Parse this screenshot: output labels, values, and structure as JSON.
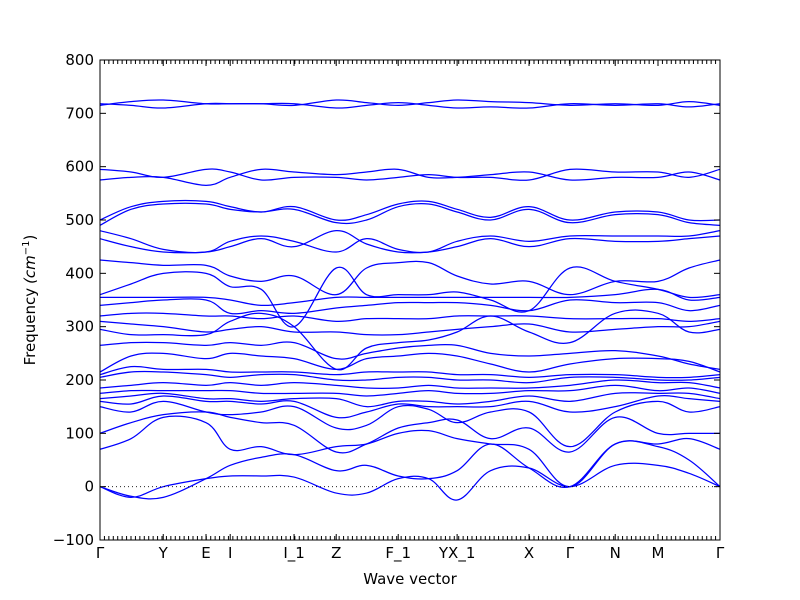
{
  "chart_data": {
    "type": "line",
    "xlabel": "Wave vector",
    "ylabel": "Frequency",
    "ylabel_unit": "(cm",
    "ylabel_exp": "−1",
    "ylabel_close": ")",
    "ylim": [
      -100,
      800
    ],
    "yticks": [
      -100,
      0,
      100,
      200,
      300,
      400,
      500,
      600,
      700,
      800
    ],
    "xlim": [
      0,
      1
    ],
    "grid": false,
    "legend": "none",
    "color": "#0000ff",
    "zero_line": 0,
    "k_labels": [
      {
        "label": "Γ",
        "x": 0.0
      },
      {
        "label": "Y",
        "x": 0.102
      },
      {
        "label": "E",
        "x": 0.171
      },
      {
        "label": "I",
        "x": 0.21
      },
      {
        "label": "I_1",
        "x": 0.313
      },
      {
        "label": "Z",
        "x": 0.381
      },
      {
        "label": "F_1",
        "x": 0.481
      },
      {
        "label": "YX_1",
        "x": 0.576
      },
      {
        "label": "X",
        "x": 0.692
      },
      {
        "label": "Γ",
        "x": 0.758
      },
      {
        "label": "N",
        "x": 0.831
      },
      {
        "label": "M",
        "x": 0.9
      },
      {
        "label": "Γ",
        "x": 1.0
      }
    ],
    "x": [
      0.0,
      0.05,
      0.102,
      0.171,
      0.21,
      0.26,
      0.313,
      0.381,
      0.43,
      0.481,
      0.53,
      0.576,
      0.63,
      0.692,
      0.758,
      0.831,
      0.9,
      0.95,
      1.0
    ],
    "series": [
      {
        "values": [
          0,
          -20,
          0,
          15,
          20,
          20,
          18,
          -12,
          -12,
          15,
          15,
          -25,
          30,
          35,
          0,
          40,
          40,
          25,
          0
        ]
      },
      {
        "values": [
          0,
          -18,
          -20,
          15,
          40,
          55,
          60,
          30,
          40,
          20,
          15,
          30,
          80,
          35,
          0,
          80,
          75,
          50,
          0
        ]
      },
      {
        "values": [
          70,
          90,
          130,
          120,
          70,
          75,
          60,
          75,
          80,
          100,
          105,
          90,
          80,
          70,
          0,
          80,
          80,
          90,
          70
        ]
      },
      {
        "values": [
          100,
          120,
          135,
          140,
          130,
          120,
          115,
          65,
          80,
          110,
          120,
          125,
          90,
          110,
          65,
          130,
          100,
          100,
          100
        ]
      },
      {
        "values": [
          150,
          140,
          160,
          140,
          135,
          140,
          150,
          110,
          115,
          150,
          145,
          120,
          140,
          140,
          75,
          140,
          160,
          140,
          150
        ]
      },
      {
        "values": [
          160,
          155,
          170,
          160,
          160,
          155,
          160,
          130,
          140,
          155,
          150,
          150,
          150,
          160,
          140,
          150,
          170,
          165,
          160
        ]
      },
      {
        "values": [
          165,
          170,
          175,
          165,
          165,
          160,
          165,
          165,
          150,
          160,
          160,
          155,
          160,
          170,
          160,
          175,
          175,
          175,
          165
        ]
      },
      {
        "values": [
          175,
          180,
          180,
          180,
          180,
          175,
          175,
          175,
          170,
          175,
          180,
          175,
          175,
          180,
          180,
          190,
          180,
          185,
          175
        ]
      },
      {
        "values": [
          185,
          190,
          195,
          190,
          195,
          190,
          195,
          190,
          185,
          185,
          190,
          185,
          185,
          185,
          190,
          200,
          195,
          195,
          185
        ]
      },
      {
        "values": [
          205,
          215,
          215,
          210,
          205,
          210,
          210,
          200,
          200,
          205,
          205,
          200,
          200,
          195,
          205,
          205,
          200,
          200,
          205
        ]
      },
      {
        "values": [
          210,
          225,
          220,
          220,
          215,
          215,
          215,
          210,
          215,
          215,
          215,
          210,
          210,
          205,
          210,
          210,
          205,
          205,
          210
        ]
      },
      {
        "values": [
          215,
          245,
          250,
          240,
          250,
          245,
          240,
          220,
          240,
          245,
          250,
          245,
          230,
          215,
          230,
          240,
          240,
          235,
          215
        ]
      },
      {
        "values": [
          265,
          270,
          270,
          265,
          270,
          265,
          270,
          240,
          250,
          260,
          265,
          265,
          250,
          245,
          250,
          255,
          245,
          230,
          220
        ]
      },
      {
        "values": [
          295,
          285,
          285,
          285,
          310,
          325,
          300,
          220,
          260,
          270,
          275,
          290,
          320,
          290,
          270,
          325,
          325,
          290,
          295
        ]
      },
      {
        "values": [
          310,
          305,
          300,
          290,
          295,
          300,
          290,
          290,
          285,
          285,
          290,
          295,
          300,
          305,
          290,
          295,
          300,
          300,
          310
        ]
      },
      {
        "values": [
          320,
          325,
          325,
          320,
          320,
          315,
          320,
          310,
          315,
          315,
          315,
          320,
          320,
          320,
          315,
          315,
          315,
          310,
          315
        ]
      },
      {
        "values": [
          340,
          345,
          350,
          350,
          325,
          330,
          325,
          335,
          340,
          345,
          345,
          345,
          340,
          330,
          350,
          345,
          345,
          330,
          340
        ]
      },
      {
        "values": [
          355,
          355,
          355,
          355,
          350,
          340,
          345,
          355,
          355,
          355,
          355,
          355,
          355,
          355,
          355,
          360,
          370,
          350,
          355
        ]
      },
      {
        "values": [
          360,
          380,
          400,
          400,
          375,
          370,
          300,
          410,
          360,
          360,
          360,
          365,
          350,
          330,
          410,
          385,
          370,
          355,
          360
        ]
      },
      {
        "values": [
          425,
          420,
          415,
          415,
          395,
          385,
          395,
          360,
          410,
          420,
          420,
          395,
          380,
          385,
          360,
          385,
          385,
          410,
          425
        ]
      },
      {
        "values": [
          465,
          450,
          440,
          440,
          450,
          465,
          450,
          480,
          455,
          440,
          440,
          450,
          465,
          450,
          465,
          460,
          460,
          465,
          470
        ]
      },
      {
        "values": [
          480,
          465,
          445,
          440,
          460,
          470,
          460,
          440,
          465,
          445,
          440,
          460,
          470,
          460,
          470,
          470,
          470,
          470,
          480
        ]
      },
      {
        "values": [
          490,
          520,
          530,
          530,
          520,
          515,
          520,
          495,
          500,
          525,
          530,
          515,
          500,
          520,
          495,
          510,
          510,
          495,
          490
        ]
      },
      {
        "values": [
          500,
          525,
          535,
          535,
          525,
          515,
          525,
          500,
          510,
          530,
          535,
          520,
          505,
          525,
          500,
          515,
          515,
          500,
          500
        ]
      },
      {
        "values": [
          575,
          580,
          580,
          565,
          580,
          595,
          590,
          585,
          590,
          595,
          580,
          580,
          585,
          590,
          575,
          580,
          580,
          590,
          575
        ]
      },
      {
        "values": [
          595,
          590,
          580,
          595,
          590,
          575,
          580,
          580,
          575,
          580,
          585,
          580,
          580,
          575,
          595,
          590,
          590,
          580,
          595
        ]
      },
      {
        "values": [
          715,
          722,
          725,
          718,
          718,
          718,
          715,
          725,
          720,
          715,
          720,
          725,
          722,
          720,
          715,
          718,
          715,
          722,
          715
        ]
      },
      {
        "values": [
          718,
          715,
          710,
          718,
          718,
          718,
          718,
          710,
          715,
          720,
          715,
          710,
          712,
          710,
          718,
          715,
          718,
          712,
          718
        ]
      }
    ]
  }
}
